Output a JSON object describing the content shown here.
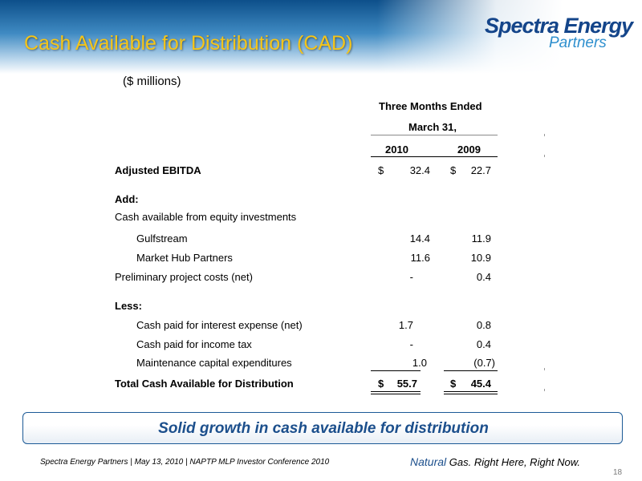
{
  "title": "Cash Available for Distribution (CAD)",
  "logo": {
    "main": "Spectra Energy",
    "sub": "Partners"
  },
  "units_note": "($ millions)",
  "table": {
    "header_line1": "Three Months Ended",
    "header_line2": "March 31,",
    "years": [
      "2010",
      "2009"
    ],
    "rows": [
      {
        "label": "Adjusted EBITDA",
        "v2010": "32.4",
        "v2009": "22.7",
        "currency": "$"
      },
      {
        "label": "Add:"
      },
      {
        "label": "Cash available from equity investments"
      },
      {
        "label": "Gulfstream",
        "v2010": "14.4",
        "v2009": "11.9"
      },
      {
        "label": "Market Hub Partners",
        "v2010": "11.6",
        "v2009": "10.9"
      },
      {
        "label": "Preliminary project costs (net)",
        "v2010": "-",
        "v2009": "0.4"
      },
      {
        "label": "Less:"
      },
      {
        "label": "Cash paid for interest expense (net)",
        "v2010": "1.7",
        "v2009": "0.8"
      },
      {
        "label": "Cash paid for income tax",
        "v2010": "-",
        "v2009": "0.4"
      },
      {
        "label": "Maintenance capital expenditures",
        "v2010": "1.0",
        "v2009": "(0.7)"
      },
      {
        "label": "Total Cash Available for Distribution",
        "v2010": "55.7",
        "v2009": "45.4",
        "currency": "$"
      }
    ]
  },
  "callout": "Solid growth in cash available for distribution",
  "footer": {
    "left": "Spectra Energy Partners | May 13, 2010 | NAPTP MLP Investor  Conference 2010",
    "tag_natural": "Natural",
    "tag_rest": " Gas.  Right Here, Right Now."
  },
  "page_number": "18",
  "colors": {
    "title": "#f5c518",
    "brand_blue": "#14458a",
    "accent_blue": "#2e8fce"
  }
}
